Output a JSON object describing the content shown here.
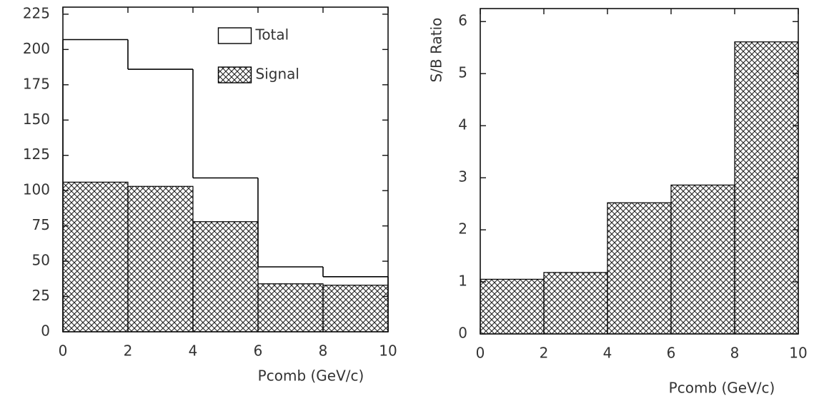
{
  "chart_data": [
    {
      "type": "histogram",
      "xlabel": "Pcomb (GeV/c)",
      "bins": [
        0,
        2,
        4,
        6,
        8,
        10
      ],
      "xlim": [
        0,
        10
      ],
      "xticks": [
        0,
        2,
        4,
        6,
        8,
        10
      ],
      "ylim": [
        0,
        230
      ],
      "yticks": [
        0,
        25,
        50,
        75,
        100,
        125,
        150,
        175,
        200,
        225
      ],
      "legend": "upper center",
      "series": [
        {
          "name": "Total",
          "color": "#000000",
          "hatch": false,
          "values": [
            207,
            186,
            109,
            46,
            39
          ]
        },
        {
          "name": "Signal",
          "color": "#000000",
          "hatch": true,
          "values": [
            106,
            103,
            78,
            34,
            33
          ]
        }
      ]
    },
    {
      "type": "histogram",
      "xlabel": "Pcomb (GeV/c)",
      "ylabel": "S/B Ratio",
      "bins": [
        0,
        2,
        4,
        6,
        8,
        10
      ],
      "xlim": [
        0,
        10
      ],
      "xticks": [
        0,
        2,
        4,
        6,
        8,
        10
      ],
      "ylim": [
        0,
        6.25
      ],
      "yticks": [
        0,
        1,
        2,
        3,
        4,
        5,
        6
      ],
      "color": "#000000",
      "hatch": true,
      "values": [
        1.05,
        1.18,
        2.52,
        2.86,
        5.61
      ]
    }
  ]
}
